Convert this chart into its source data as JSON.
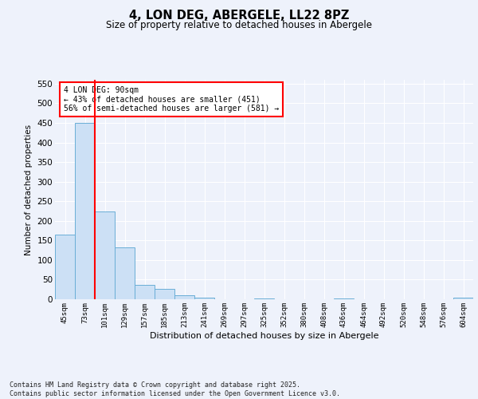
{
  "title": "4, LON DEG, ABERGELE, LL22 8PZ",
  "subtitle": "Size of property relative to detached houses in Abergele",
  "xlabel": "Distribution of detached houses by size in Abergele",
  "ylabel": "Number of detached properties",
  "categories": [
    "45sqm",
    "73sqm",
    "101sqm",
    "129sqm",
    "157sqm",
    "185sqm",
    "213sqm",
    "241sqm",
    "269sqm",
    "297sqm",
    "325sqm",
    "352sqm",
    "380sqm",
    "408sqm",
    "436sqm",
    "464sqm",
    "492sqm",
    "520sqm",
    "548sqm",
    "576sqm",
    "604sqm"
  ],
  "values": [
    165,
    450,
    225,
    132,
    36,
    26,
    10,
    5,
    0,
    0,
    3,
    0,
    0,
    0,
    3,
    0,
    0,
    0,
    0,
    0,
    4
  ],
  "bar_color": "#cce0f5",
  "bar_edge_color": "#6aaed6",
  "red_line_index": 2,
  "annotation_text": "4 LON DEG: 90sqm\n← 43% of detached houses are smaller (451)\n56% of semi-detached houses are larger (581) →",
  "ylim": [
    0,
    560
  ],
  "yticks": [
    0,
    50,
    100,
    150,
    200,
    250,
    300,
    350,
    400,
    450,
    500,
    550
  ],
  "background_color": "#eef2fb",
  "grid_color": "#ffffff",
  "footer": "Contains HM Land Registry data © Crown copyright and database right 2025.\nContains public sector information licensed under the Open Government Licence v3.0."
}
